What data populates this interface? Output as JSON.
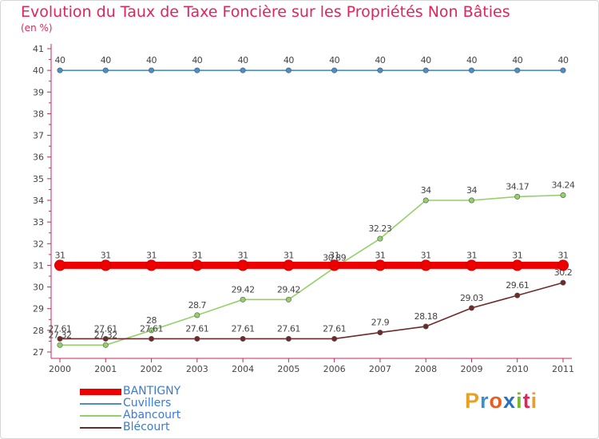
{
  "chart_data": {
    "type": "line",
    "title": "Evolution du Taux de Taxe Foncière sur les Propriétés Non Bâties",
    "subtitle": "(en %)",
    "xlabel": "",
    "ylabel": "",
    "categories": [
      "2000",
      "2001",
      "2002",
      "2003",
      "2004",
      "2005",
      "2006",
      "2007",
      "2008",
      "2009",
      "2010",
      "2011"
    ],
    "ylim": [
      27,
      41
    ],
    "yticks": [
      "27",
      "28",
      "29",
      "30",
      "31",
      "32",
      "33",
      "34",
      "35",
      "36",
      "37",
      "38",
      "39",
      "40",
      "41"
    ],
    "grid": false,
    "series": [
      {
        "name": "BANTIGNY",
        "color": "#ee0000",
        "values": [
          31,
          31,
          31,
          31,
          31,
          31,
          31,
          31,
          31,
          31,
          31,
          31
        ],
        "labels": [
          "31",
          "31",
          "31",
          "31",
          "31",
          "31",
          "31",
          "31",
          "31",
          "31",
          "31",
          "31"
        ]
      },
      {
        "name": "Cuvillers",
        "color": "#4a8fc8",
        "values": [
          40,
          40,
          40,
          40,
          40,
          40,
          40,
          40,
          40,
          40,
          40,
          40
        ],
        "labels": [
          "40",
          "40",
          "40",
          "40",
          "40",
          "40",
          "40",
          "40",
          "40",
          "40",
          "40",
          "40"
        ]
      },
      {
        "name": "Abancourt",
        "color": "#94d06a",
        "values": [
          27.32,
          27.32,
          28,
          28.7,
          29.42,
          29.42,
          30.89,
          32.23,
          34,
          34,
          34.17,
          34.24
        ],
        "labels": [
          "27.32",
          "27.32",
          "28",
          "28.7",
          "29.42",
          "29.42",
          "30.89",
          "32.23",
          "34",
          "34",
          "34.17",
          "34.24"
        ]
      },
      {
        "name": "Blécourt",
        "color": "#6e2a2a",
        "values": [
          27.61,
          27.61,
          27.61,
          27.61,
          27.61,
          27.61,
          27.61,
          27.9,
          28.18,
          29.03,
          29.61,
          30.2
        ],
        "labels": [
          "27.61",
          "27.61",
          "27.61",
          "27.61",
          "27.61",
          "27.61",
          "27.61",
          "27.9",
          "28.18",
          "29.03",
          "29.61",
          "30.2"
        ]
      }
    ],
    "legend_position": "bottom-left"
  },
  "brand": {
    "letters": [
      "P",
      "r",
      "o",
      "x",
      "i",
      "t",
      "i"
    ],
    "colors": [
      "#e8a020",
      "#3a8fd0",
      "#e86020",
      "#2a70c0",
      "#7ab830",
      "#e0245e",
      "#e8a020"
    ]
  }
}
